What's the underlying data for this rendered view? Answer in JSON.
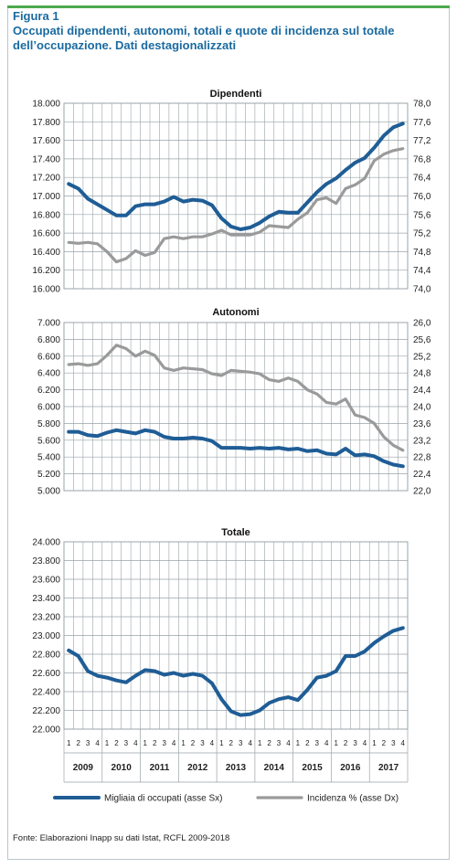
{
  "figure": {
    "label": "Figura 1",
    "title": "Occupati dipendenti, autonomi, totali e quote di incidenza sul totale dell’occupazione. Dati destagionalizzati",
    "source": "Fonte: Elaborazioni Inapp su dati Istat, RCFL 2009-2018"
  },
  "colors": {
    "primary": "#1f5d96",
    "secondary": "#9a9a9a",
    "accent": "#4ea94e",
    "title": "#1a6aa0",
    "grid": "#9aa3a8"
  },
  "chart_data": [
    {
      "type": "line",
      "title": "Dipendenti",
      "x": [
        "2009 Q1",
        "2009 Q2",
        "2009 Q3",
        "2009 Q4",
        "2010 Q1",
        "2010 Q2",
        "2010 Q3",
        "2010 Q4",
        "2011 Q1",
        "2011 Q2",
        "2011 Q3",
        "2011 Q4",
        "2012 Q1",
        "2012 Q2",
        "2012 Q3",
        "2012 Q4",
        "2013 Q1",
        "2013 Q2",
        "2013 Q3",
        "2013 Q4",
        "2014 Q1",
        "2014 Q2",
        "2014 Q3",
        "2014 Q4",
        "2015 Q1",
        "2015 Q2",
        "2015 Q3",
        "2015 Q4",
        "2016 Q1",
        "2016 Q2",
        "2016 Q3",
        "2016 Q4",
        "2017 Q1",
        "2017 Q2",
        "2017 Q3",
        "2017 Q4"
      ],
      "ylim": [
        16000,
        18000
      ],
      "yticks": [
        "16.000",
        "16.200",
        "16.400",
        "16.600",
        "16.800",
        "17.000",
        "17.200",
        "17.400",
        "17.600",
        "17.800",
        "18.000"
      ],
      "y2lim": [
        74.0,
        78.0
      ],
      "y2ticks": [
        "74,0",
        "74,4",
        "74,8",
        "75,2",
        "75,6",
        "76,0",
        "76,4",
        "76,8",
        "77,2",
        "77,6",
        "78,0"
      ],
      "series": [
        {
          "name": "Migliaia di occupati (asse Sx)",
          "axis": "left",
          "values": [
            17130,
            17080,
            16970,
            16910,
            16850,
            16790,
            16790,
            16890,
            16910,
            16910,
            16940,
            16990,
            16940,
            16960,
            16950,
            16900,
            16760,
            16670,
            16640,
            16660,
            16710,
            16780,
            16830,
            16820,
            16820,
            16930,
            17040,
            17130,
            17190,
            17280,
            17360,
            17410,
            17520,
            17650,
            17740,
            17780
          ]
        },
        {
          "name": "Incidenza % (asse Dx)",
          "axis": "right",
          "values": [
            75.0,
            74.98,
            75.0,
            74.97,
            74.8,
            74.58,
            74.65,
            74.82,
            74.72,
            74.78,
            75.08,
            75.12,
            75.08,
            75.12,
            75.12,
            75.18,
            75.26,
            75.16,
            75.16,
            75.16,
            75.22,
            75.36,
            75.34,
            75.32,
            75.5,
            75.64,
            75.92,
            75.96,
            75.84,
            76.16,
            76.24,
            76.38,
            76.76,
            76.9,
            76.98,
            77.02
          ]
        }
      ]
    },
    {
      "type": "line",
      "title": "Autonomi",
      "x": [
        "2009 Q1",
        "2009 Q2",
        "2009 Q3",
        "2009 Q4",
        "2010 Q1",
        "2010 Q2",
        "2010 Q3",
        "2010 Q4",
        "2011 Q1",
        "2011 Q2",
        "2011 Q3",
        "2011 Q4",
        "2012 Q1",
        "2012 Q2",
        "2012 Q3",
        "2012 Q4",
        "2013 Q1",
        "2013 Q2",
        "2013 Q3",
        "2013 Q4",
        "2014 Q1",
        "2014 Q2",
        "2014 Q3",
        "2014 Q4",
        "2015 Q1",
        "2015 Q2",
        "2015 Q3",
        "2015 Q4",
        "2016 Q1",
        "2016 Q2",
        "2016 Q3",
        "2016 Q4",
        "2017 Q1",
        "2017 Q2",
        "2017 Q3",
        "2017 Q4"
      ],
      "ylim": [
        5000,
        7000
      ],
      "yticks": [
        "5.000",
        "5.200",
        "5.400",
        "5.600",
        "5.800",
        "6.000",
        "6.200",
        "6.400",
        "6.600",
        "6.800",
        "7.000"
      ],
      "y2lim": [
        22.0,
        26.0
      ],
      "y2ticks": [
        "22,0",
        "22,4",
        "22,8",
        "23,2",
        "23,6",
        "24,0",
        "24,4",
        "24,8",
        "25,2",
        "25,6",
        "26,0"
      ],
      "series": [
        {
          "name": "Migliaia di occupati (asse Sx)",
          "axis": "left",
          "values": [
            5700,
            5700,
            5660,
            5650,
            5690,
            5720,
            5700,
            5680,
            5720,
            5700,
            5640,
            5620,
            5620,
            5630,
            5620,
            5590,
            5510,
            5510,
            5510,
            5500,
            5510,
            5500,
            5510,
            5490,
            5500,
            5470,
            5480,
            5440,
            5430,
            5500,
            5420,
            5430,
            5410,
            5350,
            5310,
            5290
          ]
        },
        {
          "name": "Incidenza % (asse Dx)",
          "axis": "right",
          "values": [
            25.0,
            25.02,
            24.98,
            25.02,
            25.22,
            25.46,
            25.38,
            25.2,
            25.32,
            25.22,
            24.92,
            24.86,
            24.92,
            24.9,
            24.88,
            24.78,
            24.74,
            24.86,
            24.84,
            24.82,
            24.78,
            24.64,
            24.6,
            24.68,
            24.6,
            24.4,
            24.3,
            24.1,
            24.06,
            24.18,
            23.8,
            23.74,
            23.6,
            23.28,
            23.08,
            22.96
          ]
        }
      ]
    },
    {
      "type": "line",
      "title": "Totale",
      "x": [
        "2009 Q1",
        "2009 Q2",
        "2009 Q3",
        "2009 Q4",
        "2010 Q1",
        "2010 Q2",
        "2010 Q3",
        "2010 Q4",
        "2011 Q1",
        "2011 Q2",
        "2011 Q3",
        "2011 Q4",
        "2012 Q1",
        "2012 Q2",
        "2012 Q3",
        "2012 Q4",
        "2013 Q1",
        "2013 Q2",
        "2013 Q3",
        "2013 Q4",
        "2014 Q1",
        "2014 Q2",
        "2014 Q3",
        "2014 Q4",
        "2015 Q1",
        "2015 Q2",
        "2015 Q3",
        "2015 Q4",
        "2016 Q1",
        "2016 Q2",
        "2016 Q3",
        "2016 Q4",
        "2017 Q1",
        "2017 Q2",
        "2017 Q3",
        "2017 Q4"
      ],
      "ylim": [
        22000,
        24000
      ],
      "yticks": [
        "22.000",
        "22.200",
        "22.400",
        "22.600",
        "22.800",
        "23.000",
        "23.200",
        "23.400",
        "23.600",
        "23.800",
        "24.000"
      ],
      "series": [
        {
          "name": "Migliaia di occupati (asse Sx)",
          "axis": "left",
          "values": [
            22840,
            22780,
            22620,
            22570,
            22550,
            22520,
            22500,
            22570,
            22630,
            22620,
            22580,
            22600,
            22570,
            22590,
            22570,
            22490,
            22320,
            22190,
            22150,
            22160,
            22200,
            22280,
            22320,
            22340,
            22310,
            22420,
            22550,
            22570,
            22620,
            22780,
            22780,
            22830,
            22920,
            22990,
            23050,
            23080
          ]
        }
      ]
    }
  ],
  "xaxis": {
    "quarters": [
      "1",
      "2",
      "3",
      "4"
    ],
    "years": [
      "2009",
      "2010",
      "2011",
      "2012",
      "2013",
      "2014",
      "2015",
      "2016",
      "2017"
    ]
  },
  "legend": {
    "primary": "Migliaia di occupati (asse Sx)",
    "secondary": "Incidenza % (asse Dx)"
  }
}
